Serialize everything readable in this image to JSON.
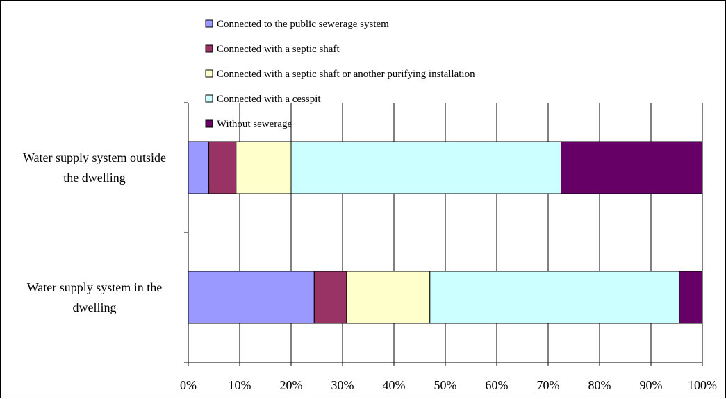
{
  "chart_data": {
    "type": "bar",
    "orientation": "horizontal",
    "stacked": true,
    "percent_stacked": true,
    "categories": [
      [
        "Water supply system outside",
        "the dwelling"
      ],
      [
        "Water supply system in the",
        "dwelling"
      ]
    ],
    "series": [
      {
        "name": "Connected to the public sewerage system",
        "color": "#9999ff",
        "values": [
          4,
          24.5
        ]
      },
      {
        "name": "Connected with a septic shaft",
        "color": "#993366",
        "values": [
          5.3,
          6.3
        ]
      },
      {
        "name": "Connected with a septic shaft or another purifying installation",
        "color": "#ffffcc",
        "values": [
          10.7,
          16.2
        ]
      },
      {
        "name": "Connected with a cesspit",
        "color": "#ccffff",
        "values": [
          52.5,
          48.5
        ]
      },
      {
        "name": "Without sewerage",
        "color": "#660066",
        "values": [
          27.5,
          4.5
        ]
      }
    ],
    "x_ticks": [
      "0%",
      "10%",
      "20%",
      "30%",
      "40%",
      "50%",
      "60%",
      "70%",
      "80%",
      "90%",
      "100%"
    ],
    "xlim": [
      0,
      100
    ],
    "grid": true,
    "legend_position": "top"
  }
}
